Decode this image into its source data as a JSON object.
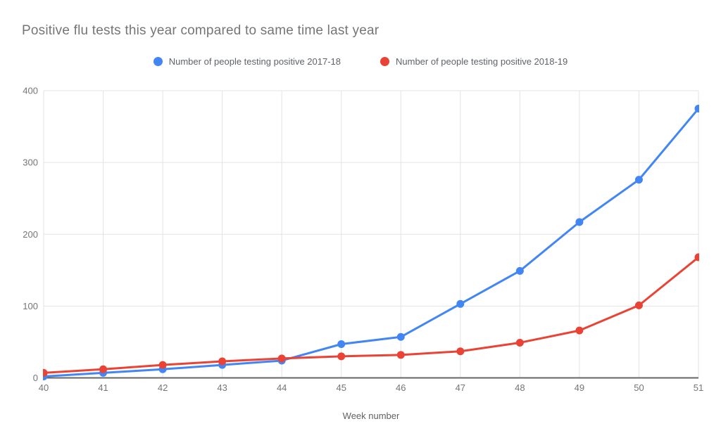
{
  "page": {
    "title": "Positive flu tests this year compared to same time last year"
  },
  "chart_data": {
    "type": "line",
    "title": "Positive flu tests this year compared to same time last year",
    "xlabel": "Week number",
    "ylabel": "",
    "x": [
      40,
      41,
      42,
      43,
      44,
      45,
      46,
      47,
      48,
      49,
      50,
      51
    ],
    "xlim": [
      40,
      51
    ],
    "ylim": [
      0,
      400
    ],
    "yticks": [
      0,
      100,
      200,
      300,
      400
    ],
    "grid": true,
    "legend_position": "top",
    "marker": "circle",
    "series": [
      {
        "name": "Number of people testing positive 2017-18",
        "color": "#4285f4",
        "values": [
          2,
          7,
          12,
          18,
          24,
          47,
          57,
          103,
          149,
          217,
          276,
          375
        ]
      },
      {
        "name": "Number of people testing positive 2018-19",
        "color": "#ea4335",
        "values": [
          7,
          12,
          18,
          23,
          27,
          30,
          32,
          37,
          49,
          66,
          101,
          168
        ]
      }
    ]
  },
  "colors": {
    "series_2017_18": "#4285f4",
    "series_2018_19": "#ea4335",
    "gridline": "#e3e3e3",
    "axis_line": "#666666",
    "tick_label": "#757575",
    "title_text": "#757575",
    "legend_text": "#5f6368",
    "axis_title_text": "#616161",
    "background": "#ffffff"
  }
}
